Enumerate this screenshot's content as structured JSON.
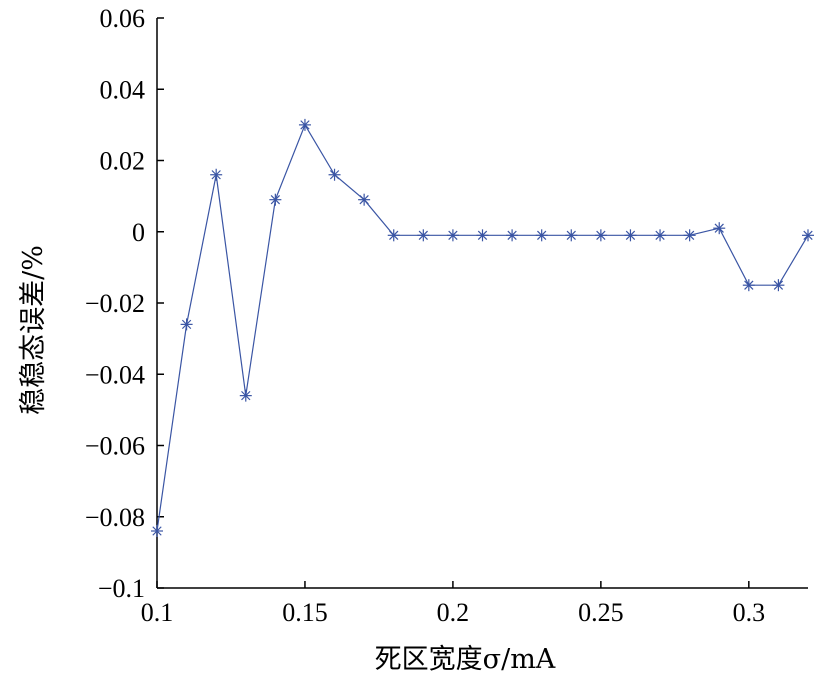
{
  "chart_data": {
    "type": "line",
    "title": "",
    "xlabel": "死区宽度σ/mA",
    "ylabel": "稳稳态误差/%",
    "xlim": [
      0.1,
      0.32
    ],
    "ylim": [
      -0.1,
      0.06
    ],
    "xticks": [
      0.1,
      0.15,
      0.2,
      0.25,
      0.3
    ],
    "xtick_labels": [
      "0.1",
      "0.15",
      "0.2",
      "0.25",
      "0.3"
    ],
    "yticks": [
      0.06,
      0.04,
      0.02,
      0,
      -0.02,
      -0.04,
      -0.06,
      -0.08,
      -0.1
    ],
    "ytick_labels": [
      "0.06",
      "0.04",
      "0.02",
      "0",
      "−0.02",
      "−0.04",
      "−0.06",
      "−0.08",
      "−0.1"
    ],
    "grid": false,
    "series": [
      {
        "color": "#3a55a4",
        "marker": "asterisk",
        "x": [
          0.1,
          0.11,
          0.12,
          0.13,
          0.14,
          0.15,
          0.16,
          0.17,
          0.18,
          0.19,
          0.2,
          0.21,
          0.22,
          0.23,
          0.24,
          0.25,
          0.26,
          0.27,
          0.28,
          0.29,
          0.3,
          0.31,
          0.32
        ],
        "y": [
          -0.084,
          -0.026,
          0.016,
          -0.046,
          0.009,
          0.03,
          0.016,
          0.009,
          -0.001,
          -0.001,
          -0.001,
          -0.001,
          -0.001,
          -0.001,
          -0.001,
          -0.001,
          -0.001,
          -0.001,
          -0.001,
          0.001,
          -0.015,
          -0.015,
          -0.001
        ]
      }
    ]
  }
}
